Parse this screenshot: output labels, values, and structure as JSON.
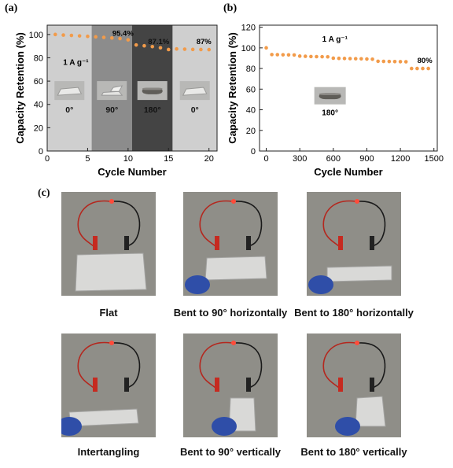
{
  "chart_data": [
    {
      "panel": "(a)",
      "type": "scatter",
      "xlabel": "Cycle Number",
      "ylabel": "Capacity Retention (%)",
      "xlim": [
        0,
        21
      ],
      "ylim": [
        0,
        108
      ],
      "xticks": [
        "0",
        "5",
        "10",
        "15",
        "20"
      ],
      "yticks": [
        "0",
        "20",
        "40",
        "60",
        "80",
        "100"
      ],
      "x": [
        1,
        2,
        3,
        4,
        5,
        6,
        7,
        8,
        9,
        10,
        11,
        12,
        13,
        14,
        15,
        16,
        17,
        18,
        19,
        20
      ],
      "y": [
        100,
        99.5,
        99.2,
        98.8,
        98.4,
        98,
        97.5,
        97,
        96.5,
        95.4,
        91,
        90.3,
        89.6,
        88.6,
        87.1,
        87.6,
        87.4,
        87.2,
        87.1,
        87
      ],
      "series_color": "#f29b4a",
      "regions": [
        {
          "label": "0°",
          "from": 0,
          "to": 5.5,
          "color": "#cfcfcf"
        },
        {
          "label": "90°",
          "from": 5.5,
          "to": 10.5,
          "color": "#8c8c8c"
        },
        {
          "label": "180°",
          "from": 10.5,
          "to": 15.5,
          "color": "#444444"
        },
        {
          "label": "0°",
          "from": 15.5,
          "to": 21,
          "color": "#cfcfcf"
        }
      ],
      "annotations": [
        {
          "text": "95.4%",
          "x": 10,
          "y": 95.4
        },
        {
          "text": "87.1%",
          "x": 15,
          "y": 87.1
        },
        {
          "text": "87%",
          "x": 20,
          "y": 87
        }
      ],
      "current_density": "1 A g⁻¹"
    },
    {
      "panel": "(b)",
      "type": "scatter",
      "xlabel": "Cycle Number",
      "ylabel": "Capacity Retention (%)",
      "xlim": [
        -60,
        1530
      ],
      "ylim": [
        0,
        122
      ],
      "xticks": [
        "0",
        "300",
        "600",
        "900",
        "1200",
        "1500"
      ],
      "yticks": [
        "0",
        "20",
        "40",
        "60",
        "80",
        "100",
        "120"
      ],
      "x": [
        0,
        50,
        100,
        150,
        200,
        250,
        300,
        350,
        400,
        450,
        500,
        550,
        600,
        650,
        700,
        750,
        800,
        850,
        900,
        950,
        1000,
        1050,
        1100,
        1150,
        1200,
        1250,
        1300,
        1350,
        1400,
        1450
      ],
      "y": [
        100,
        93.5,
        93.4,
        93.3,
        93.2,
        93.1,
        92,
        91.8,
        91.6,
        91.5,
        91.4,
        91.3,
        90,
        89.8,
        89.7,
        89.6,
        89.5,
        89.4,
        89.2,
        89,
        87,
        86.9,
        86.8,
        86.7,
        86.6,
        86.5,
        80,
        80,
        80,
        80
      ],
      "series_color": "#f29b4a",
      "annotations": [
        {
          "text": "80%",
          "x": 1450,
          "y": 80
        }
      ],
      "current_density": "1 A g⁻¹",
      "inset_label": "180°"
    }
  ],
  "panel_c": {
    "label": "(c)",
    "photos": [
      {
        "caption": "Flat"
      },
      {
        "caption": "Bent to 90° horizontally"
      },
      {
        "caption": "Bent to 180° horizontally"
      },
      {
        "caption": "Intertangling"
      },
      {
        "caption": "Bent to 90° vertically"
      },
      {
        "caption": "Bent to 180° vertically"
      }
    ]
  }
}
